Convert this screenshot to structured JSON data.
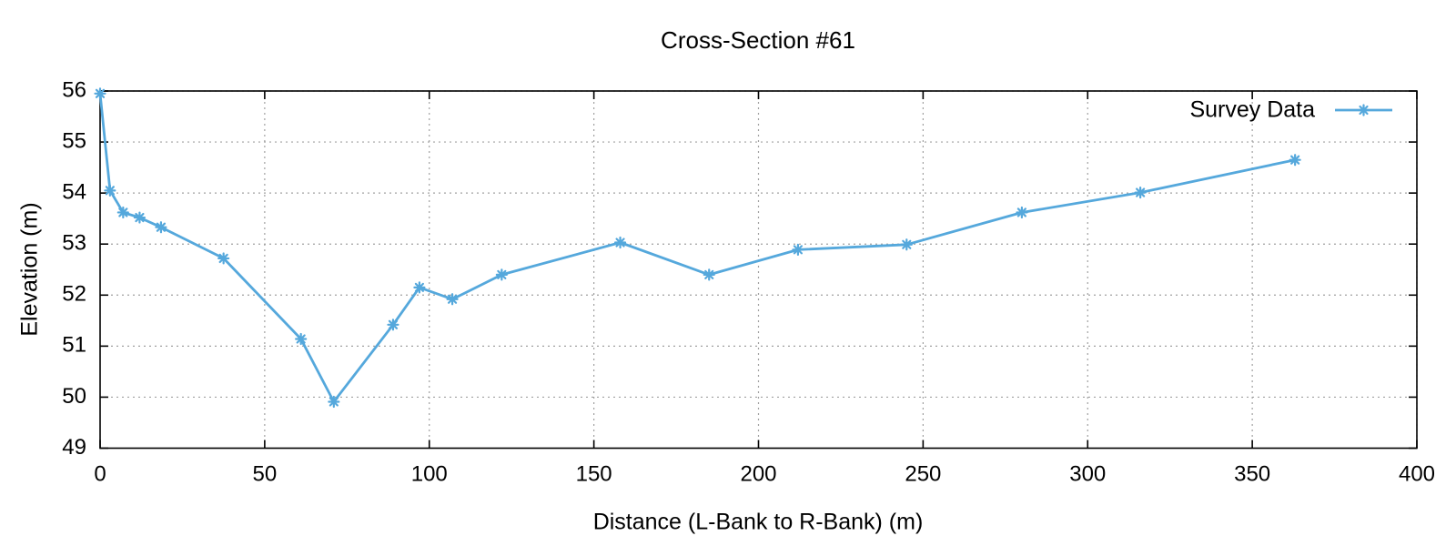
{
  "title": "Cross-Section #61",
  "legend": {
    "label": "Survey Data"
  },
  "axes": {
    "x": {
      "label": "Distance (L-Bank to R-Bank) (m)",
      "tick_labels": [
        "0",
        "50",
        "100",
        "150",
        "200",
        "250",
        "300",
        "350",
        "400"
      ]
    },
    "y": {
      "label": "Elevation (m)",
      "tick_labels": [
        "49",
        "50",
        "51",
        "52",
        "53",
        "54",
        "55",
        "56"
      ]
    }
  },
  "colors": {
    "series": "#55a8dc",
    "grid": "#a0a0a0",
    "axis": "#000000",
    "text": "#000000",
    "background": "#ffffff"
  },
  "chart_data": {
    "type": "line",
    "title": "Cross-Section #61",
    "xlabel": "Distance (L-Bank to R-Bank) (m)",
    "ylabel": "Elevation (m)",
    "xlim": [
      0,
      400
    ],
    "ylim": [
      49,
      56
    ],
    "x_tick_step": 50,
    "y_tick_step": 1,
    "grid": true,
    "legend_position": "top-right-inside",
    "series": [
      {
        "name": "Survey Data",
        "color": "#55a8dc",
        "marker": "asterisk",
        "points": [
          [
            0,
            55.95
          ],
          [
            3,
            54.05
          ],
          [
            7,
            53.62
          ],
          [
            12,
            53.52
          ],
          [
            18.5,
            53.33
          ],
          [
            37.5,
            52.72
          ],
          [
            61,
            51.14
          ],
          [
            71,
            49.91
          ],
          [
            89,
            51.42
          ],
          [
            97,
            52.15
          ],
          [
            107,
            51.92
          ],
          [
            122,
            52.4
          ],
          [
            158,
            53.03
          ],
          [
            185,
            52.4
          ],
          [
            212,
            52.89
          ],
          [
            245,
            52.99
          ],
          [
            280,
            53.62
          ],
          [
            316,
            54.01
          ],
          [
            363,
            54.65
          ]
        ]
      }
    ]
  }
}
